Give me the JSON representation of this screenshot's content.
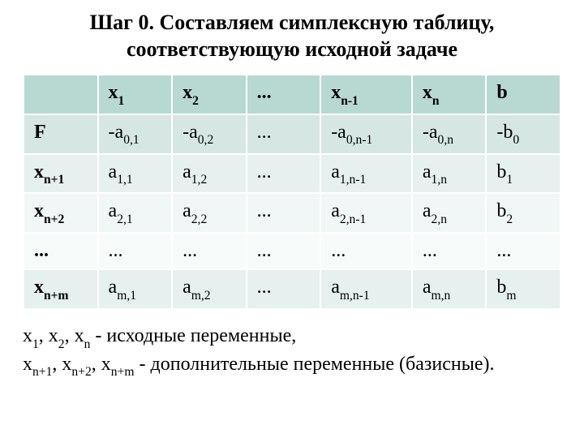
{
  "title_line1": "Шаг 0. Составляем симплексную таблицу,",
  "title_line2": "соответствующую исходной задаче",
  "table": {
    "colors": {
      "header_bg": "#b8d8d2",
      "row_shade_dark": "#d6e6e3",
      "row_shade_mid": "#e6f0ee",
      "row_shade_light": "#f1f7f6",
      "row_shade_lighter": "#f7fbfa",
      "text": "#000000",
      "border": "#ffffff"
    },
    "fontsize": 24,
    "font_family": "Times New Roman",
    "col_widths_pct": [
      13,
      13,
      13,
      13,
      16,
      13,
      13
    ],
    "header": [
      {
        "parts": [
          {
            "t": ""
          }
        ]
      },
      {
        "parts": [
          {
            "t": "x"
          },
          {
            "t": "1",
            "sub": true
          }
        ]
      },
      {
        "parts": [
          {
            "t": "x"
          },
          {
            "t": "2",
            "sub": true
          }
        ]
      },
      {
        "parts": [
          {
            "t": "..."
          }
        ]
      },
      {
        "parts": [
          {
            "t": "x"
          },
          {
            "t": "n-1",
            "sub": true
          }
        ]
      },
      {
        "parts": [
          {
            "t": "x"
          },
          {
            "t": "n",
            "sub": true
          }
        ]
      },
      {
        "parts": [
          {
            "t": "b"
          }
        ]
      }
    ],
    "rows": [
      {
        "bg": "#d6e6e3",
        "cells": [
          {
            "bold": true,
            "parts": [
              {
                "t": "F"
              }
            ]
          },
          {
            "parts": [
              {
                "t": "-a"
              },
              {
                "t": "0,1",
                "sub": true
              }
            ]
          },
          {
            "parts": [
              {
                "t": "-a"
              },
              {
                "t": "0,2",
                "sub": true
              }
            ]
          },
          {
            "parts": [
              {
                "t": "..."
              }
            ]
          },
          {
            "parts": [
              {
                "t": "-a"
              },
              {
                "t": "0,n-1",
                "sub": true
              }
            ]
          },
          {
            "parts": [
              {
                "t": "-a"
              },
              {
                "t": "0,n",
                "sub": true
              }
            ]
          },
          {
            "parts": [
              {
                "t": "-b"
              },
              {
                "t": "0",
                "sub": true
              }
            ]
          }
        ]
      },
      {
        "bg": "#e6f0ee",
        "cells": [
          {
            "bold": true,
            "parts": [
              {
                "t": "x"
              },
              {
                "t": "n+1",
                "sub": true
              }
            ]
          },
          {
            "parts": [
              {
                "t": "a"
              },
              {
                "t": "1,1",
                "sub": true
              }
            ]
          },
          {
            "parts": [
              {
                "t": "a"
              },
              {
                "t": "1,2",
                "sub": true
              }
            ]
          },
          {
            "parts": [
              {
                "t": "..."
              }
            ]
          },
          {
            "parts": [
              {
                "t": "a"
              },
              {
                "t": "1,n-1",
                "sub": true
              }
            ]
          },
          {
            "parts": [
              {
                "t": "a"
              },
              {
                "t": "1,n",
                "sub": true
              }
            ]
          },
          {
            "parts": [
              {
                "t": "b"
              },
              {
                "t": "1",
                "sub": true
              }
            ]
          }
        ]
      },
      {
        "bg": "#f1f7f6",
        "cells": [
          {
            "bold": true,
            "parts": [
              {
                "t": "x"
              },
              {
                "t": "n+2",
                "sub": true
              }
            ]
          },
          {
            "parts": [
              {
                "t": "a"
              },
              {
                "t": "2,1",
                "sub": true
              }
            ]
          },
          {
            "parts": [
              {
                "t": "a"
              },
              {
                "t": "2,2",
                "sub": true
              }
            ]
          },
          {
            "parts": [
              {
                "t": "..."
              }
            ]
          },
          {
            "parts": [
              {
                "t": "a"
              },
              {
                "t": "2,n-1",
                "sub": true
              }
            ]
          },
          {
            "parts": [
              {
                "t": "a"
              },
              {
                "t": "2,n",
                "sub": true
              }
            ]
          },
          {
            "parts": [
              {
                "t": "b"
              },
              {
                "t": "2",
                "sub": true
              }
            ]
          }
        ]
      },
      {
        "bg": "#f7fbfa",
        "cells": [
          {
            "bold": true,
            "parts": [
              {
                "t": "..."
              }
            ]
          },
          {
            "parts": [
              {
                "t": "..."
              }
            ]
          },
          {
            "parts": [
              {
                "t": "..."
              }
            ]
          },
          {
            "parts": [
              {
                "t": "..."
              }
            ]
          },
          {
            "parts": [
              {
                "t": "..."
              }
            ]
          },
          {
            "parts": [
              {
                "t": "..."
              }
            ]
          },
          {
            "parts": [
              {
                "t": "..."
              }
            ]
          }
        ]
      },
      {
        "bg": "#e6f0ee",
        "cells": [
          {
            "bold": true,
            "parts": [
              {
                "t": "x"
              },
              {
                "t": "n+m",
                "sub": true
              }
            ]
          },
          {
            "parts": [
              {
                "t": "a"
              },
              {
                "t": "m,1",
                "sub": true
              }
            ]
          },
          {
            "parts": [
              {
                "t": "a"
              },
              {
                "t": "m,2",
                "sub": true
              }
            ]
          },
          {
            "parts": [
              {
                "t": "..."
              }
            ]
          },
          {
            "parts": [
              {
                "t": "a"
              },
              {
                "t": "m,n-1",
                "sub": true
              }
            ]
          },
          {
            "parts": [
              {
                "t": "a"
              },
              {
                "t": "m,n",
                "sub": true
              }
            ]
          },
          {
            "parts": [
              {
                "t": "b"
              },
              {
                "t": "m",
                "sub": true
              }
            ]
          }
        ]
      }
    ]
  },
  "notes": {
    "line1": {
      "parts": [
        {
          "t": "x"
        },
        {
          "t": "1",
          "sub": true
        },
        {
          "t": ", x"
        },
        {
          "t": "2",
          "sub": true
        },
        {
          "t": ", x"
        },
        {
          "t": "n",
          "sub": true
        },
        {
          "t": " - исходные переменные,"
        }
      ]
    },
    "line2": {
      "parts": [
        {
          "t": "x"
        },
        {
          "t": "n+1",
          "sub": true
        },
        {
          "t": ", x"
        },
        {
          "t": "n+2",
          "sub": true
        },
        {
          "t": ", x"
        },
        {
          "t": "n+m",
          "sub": true
        },
        {
          "t": " - дополнительные переменные (базисные)."
        }
      ]
    }
  }
}
